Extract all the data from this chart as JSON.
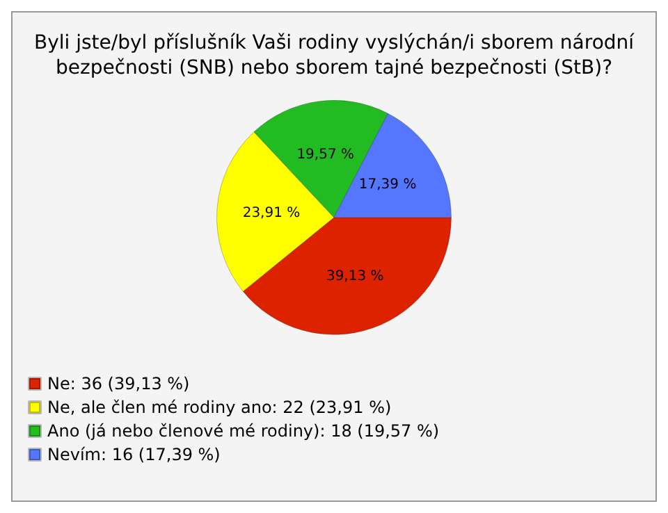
{
  "chart_data": {
    "type": "pie",
    "title": "Byli jste/byl příslušník Vaši rodiny vyslýchán/i sborem národní\nbezpečnosti (SNB) nebo sborem tajné bezpečnosti (StB)?",
    "categories": [
      "Ne: 36 (39,13 %)",
      "Ne, ale člen mé rodiny ano: 22 (23,91 %)",
      "Ano (já nebo členové mé rodiny): 18 (19,57 %)",
      "Nevím: 16 (17,39 %)"
    ],
    "values": [
      39.13,
      23.91,
      19.57,
      17.39
    ],
    "value_labels": [
      "39,13 %",
      "23,91 %",
      "19,57 %",
      "17,39 %"
    ],
    "colors": [
      "#dd2200",
      "#ffff00",
      "#22bb22",
      "#5577ff"
    ],
    "legend": "bottom left"
  }
}
